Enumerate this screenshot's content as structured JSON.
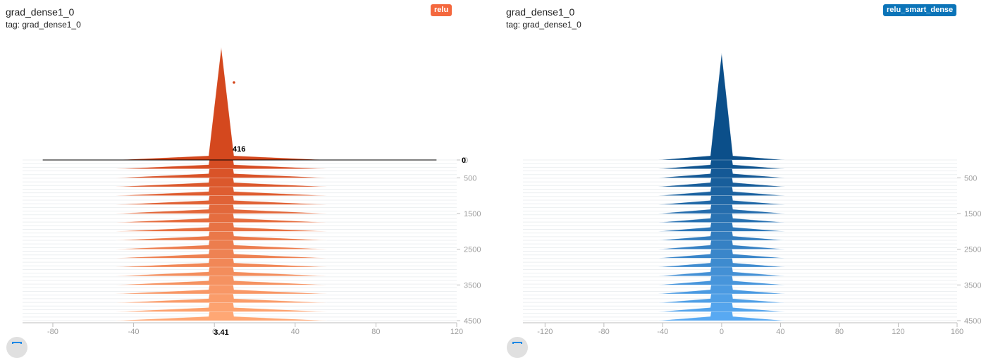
{
  "panels": [
    {
      "title": "grad_dense1_0",
      "tag_line": "tag: grad_dense1_0",
      "run_label": "relu",
      "run_color": "#f4683e",
      "hover": {
        "x_value": "3.41",
        "count": "416",
        "step": "0"
      }
    },
    {
      "title": "grad_dense1_0",
      "tag_line": "tag: grad_dense1_0",
      "run_label": "relu_smart_dense",
      "run_color": "#0b74b8"
    }
  ],
  "chart_data": [
    {
      "type": "histogram-offset",
      "run": "relu",
      "color_light": "#ffa774",
      "color_dark": "#d4481e",
      "xlim": [
        -95,
        120
      ],
      "x_ticks": [
        -80,
        -40,
        0,
        40,
        80,
        120
      ],
      "x_tick_labels": [
        "-80",
        "-40",
        "0",
        "40",
        "80",
        "120"
      ],
      "y_ticks": [
        0,
        500,
        1500,
        2500,
        3500,
        4500
      ],
      "y_tick_labels": [
        "0",
        "500",
        "1500",
        "2500",
        "3500",
        "4500"
      ],
      "step_range": [
        0,
        4500
      ],
      "steps": [
        0,
        250,
        500,
        750,
        1000,
        1250,
        1500,
        1750,
        2000,
        2250,
        2500,
        2750,
        3000,
        3250,
        3500,
        3750,
        4000,
        4250,
        4500
      ],
      "hover": {
        "x": 3.41,
        "count": 416,
        "step": 0
      }
    },
    {
      "type": "histogram-offset",
      "run": "relu_smart_dense",
      "color_light": "#58a9f2",
      "color_dark": "#0b4f8a",
      "xlim": [
        -135,
        160
      ],
      "x_ticks": [
        -120,
        -80,
        -40,
        0,
        40,
        80,
        120,
        160
      ],
      "x_tick_labels": [
        "-120",
        "-80",
        "-40",
        "0",
        "40",
        "80",
        "120",
        "160"
      ],
      "y_ticks": [
        500,
        1500,
        2500,
        3500,
        4500
      ],
      "y_tick_labels": [
        "500",
        "1500",
        "2500",
        "3500",
        "4500"
      ],
      "step_range": [
        0,
        4500
      ],
      "steps": [
        0,
        250,
        500,
        750,
        1000,
        1250,
        1500,
        1750,
        2000,
        2250,
        2500,
        2750,
        3000,
        3250,
        3500,
        3750,
        4000,
        4250,
        4500
      ]
    }
  ]
}
